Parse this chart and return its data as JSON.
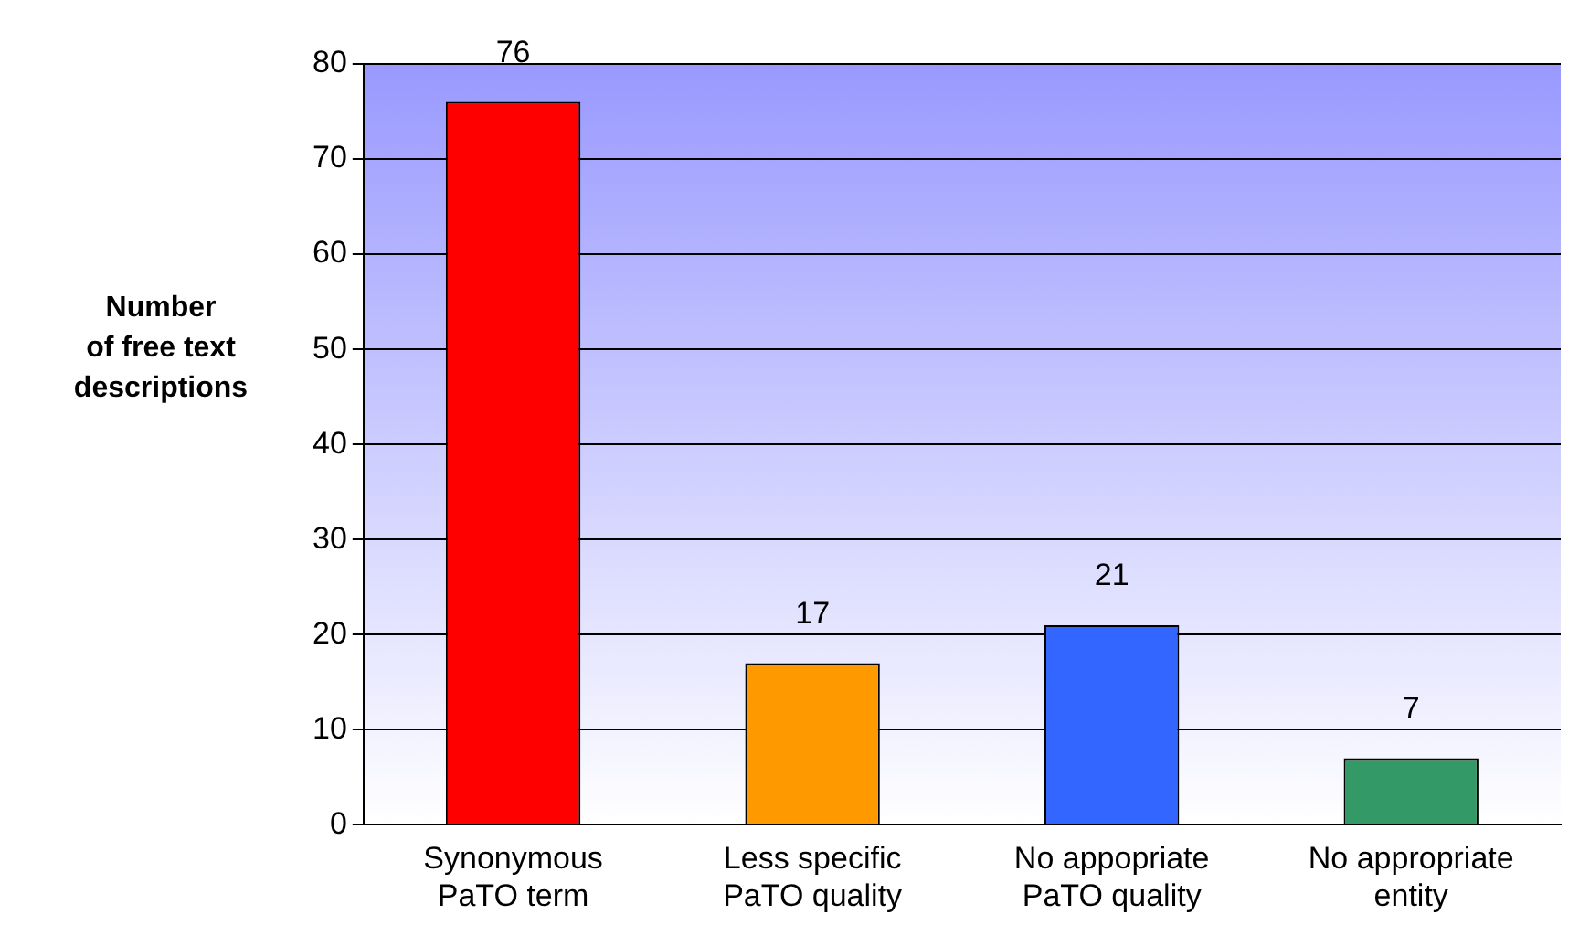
{
  "chart_data": {
    "type": "bar",
    "ylabel": "Number\nof free text\ndescriptions",
    "categories": [
      "Synonymous\nPaTO term",
      "Less specific\nPaTO quality",
      "No appopriate\nPaTO quality",
      "No appropriate\nentity"
    ],
    "values": [
      76,
      17,
      21,
      7
    ],
    "colors": [
      "#ff0000",
      "#ff9900",
      "#3366ff",
      "#339966"
    ],
    "ylim": [
      0,
      80
    ],
    "yticks": [
      0,
      10,
      20,
      30,
      40,
      50,
      60,
      70,
      80
    ],
    "grid": "y",
    "data_labels": true,
    "legend": false
  }
}
